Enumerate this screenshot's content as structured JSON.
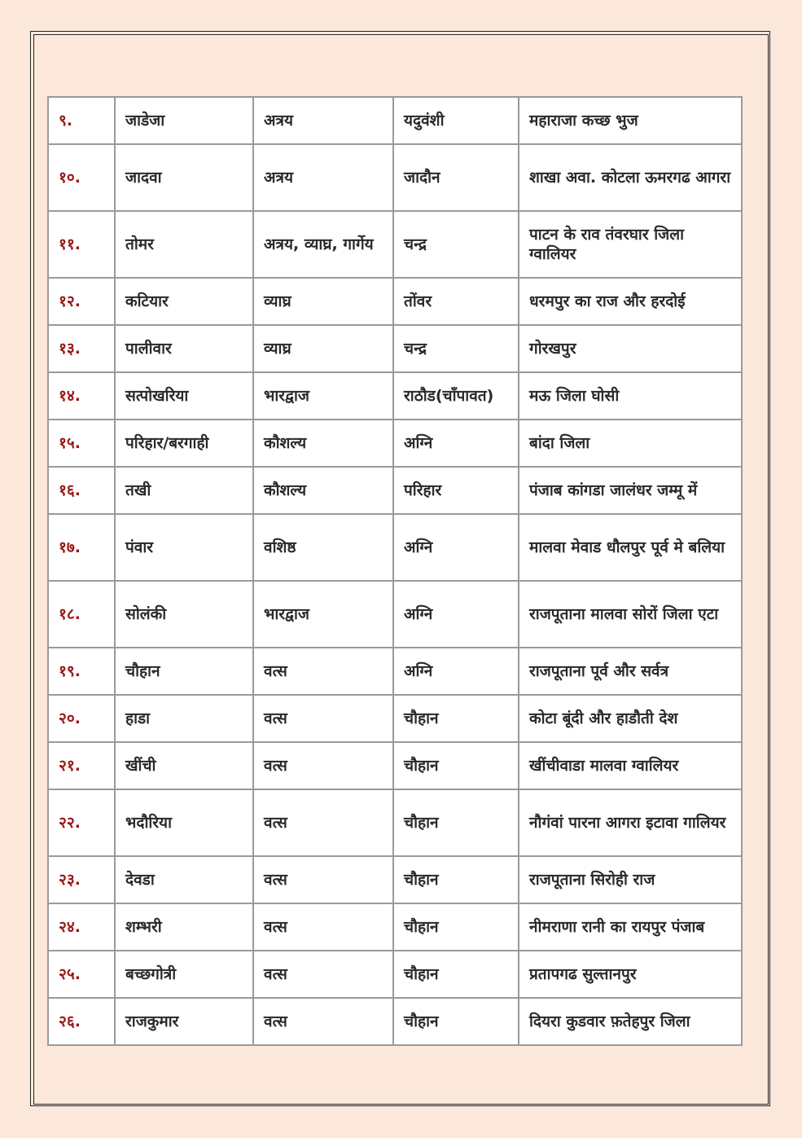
{
  "colors": {
    "background": "#fbe8db",
    "number": "#9b1a1a",
    "text": "#2a2a2a",
    "grid": "#9a9a9a"
  },
  "rows": [
    [
      "९.",
      "जाडेजा",
      "अत्रय",
      "यदुवंशी",
      "महाराजा कच्छ भुज"
    ],
    [
      "१०.",
      "जादवा",
      "अत्रय",
      "जादौन",
      "शाखा अवा. कोटला ऊमरगढ आगरा"
    ],
    [
      "११.",
      "तोमर",
      "अत्रय, व्याघ्र, गार्गेय",
      "चन्द्र",
      "पाटन के राव तंवरघार जिला ग्वालियर"
    ],
    [
      "१२.",
      "कटियार",
      "व्याघ्र",
      "तोंवर",
      "धरमपुर का राज और हरदोई"
    ],
    [
      "१३.",
      "पालीवार",
      "व्याघ्र",
      "चन्द्र",
      "गोरखपुर"
    ],
    [
      "१४.",
      "सत्पोखरिया",
      "भारद्वाज",
      "राठौड(चाँपावत)",
      "मऊ जिला घोसी"
    ],
    [
      "१५.",
      "परिहार/बरगाही",
      "कौशल्य",
      "अग्नि",
      "बांदा जिला"
    ],
    [
      "१६.",
      "तखी",
      "कौशल्य",
      "परिहार",
      "पंजाब कांगडा जालंधर जम्मू में"
    ],
    [
      "१७.",
      "पंवार",
      "वशिष्ठ",
      "अग्नि",
      "मालवा मेवाड धौलपुर पूर्व मे बलिया"
    ],
    [
      "१८.",
      "सोलंकी",
      "भारद्वाज",
      "अग्नि",
      "राजपूताना मालवा सोरों जिला एटा"
    ],
    [
      "१९.",
      "चौहान",
      "वत्स",
      "अग्नि",
      "राजपूताना पूर्व और सर्वत्र"
    ],
    [
      "२०.",
      "हाडा",
      "वत्स",
      "चौहान",
      "कोटा बूंदी और हाडौती देश"
    ],
    [
      "२१.",
      "खींची",
      "वत्स",
      "चौहान",
      "खींचीवाडा मालवा ग्वालियर"
    ],
    [
      "२२.",
      "भदौरिया",
      "वत्स",
      "चौहान",
      "नौगंवां पारना आगरा इटावा गालियर"
    ],
    [
      "२३.",
      "देवडा",
      "वत्स",
      "चौहान",
      "राजपूताना सिरोही राज"
    ],
    [
      "२४.",
      "शम्भरी",
      "वत्स",
      "चौहान",
      "नीमराणा रानी का रायपुर पंजाब"
    ],
    [
      "२५.",
      "बच्छगोत्री",
      "वत्स",
      "चौहान",
      "प्रतापगढ सुल्तानपुर"
    ],
    [
      "२६.",
      "राजकुमार",
      "वत्स",
      "चौहान",
      "दियरा कुडवार फ़तेहपुर जिला"
    ]
  ]
}
